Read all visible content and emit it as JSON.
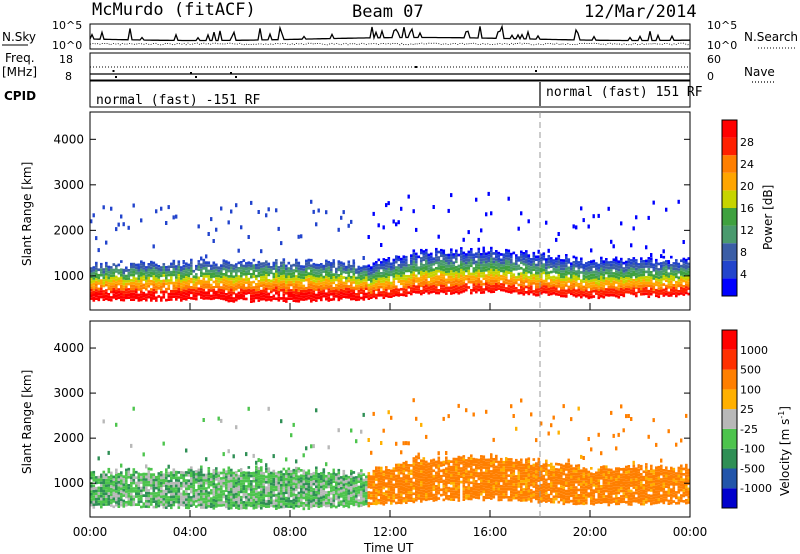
{
  "header": {
    "station": "McMurdo (fitACF)",
    "beam": "Beam 07",
    "date": "12/Mar/2014"
  },
  "top_panels": {
    "nsky_label": "N.Sky",
    "nsearch_label": "N.Search",
    "nsky_ticks": [
      "10^5",
      "10^0"
    ],
    "nsearch_ticks": [
      "10^5",
      "10^0"
    ],
    "freq_label_1": "Freq.",
    "freq_label_2": "[MHz]",
    "freq_ticks": [
      "18",
      "8"
    ],
    "nave_label": "Nave",
    "nave_ticks": [
      "60",
      "0"
    ],
    "cpid_label": "CPID",
    "cpid_segments": [
      {
        "text": "normal (fast) -151 RF",
        "start_hour": 0
      },
      {
        "text": "normal (fast) 151 RF",
        "start_hour": 18
      }
    ]
  },
  "colors": {
    "power_scale": [
      "#0000ff",
      "#2244cc",
      "#3b5ea6",
      "#4a9a6e",
      "#3fa13f",
      "#c7d400",
      "#ffa500",
      "#ff7f00",
      "#ff2000",
      "#ff0000"
    ],
    "velocity_scale": [
      "#0000cc",
      "#2255aa",
      "#2f8f55",
      "#4dc44d",
      "#b8b8b8",
      "#ffb000",
      "#ff7f00",
      "#ff3000",
      "#ff0000"
    ]
  },
  "chart_data": [
    {
      "type": "heatmap",
      "panel": "power",
      "ylabel": "Slant Range [km]",
      "xlabel": "",
      "yticks": [
        "1000",
        "2000",
        "3000",
        "4000"
      ],
      "ylim": [
        250,
        4600
      ],
      "xlim_hours": [
        0,
        24
      ],
      "colorbar_label": "Power [dB]",
      "colorbar_ticks": [
        "28",
        "24",
        "20",
        "16",
        "12",
        "8",
        "4"
      ],
      "colorbar_range": [
        0,
        30
      ],
      "echo_band_lower_km": [
        {
          "h": 0,
          "km": 470
        },
        {
          "h": 4,
          "km": 460
        },
        {
          "h": 8,
          "km": 430
        },
        {
          "h": 11,
          "km": 480
        },
        {
          "h": 13,
          "km": 600
        },
        {
          "h": 16,
          "km": 640
        },
        {
          "h": 20,
          "km": 520
        },
        {
          "h": 24,
          "km": 560
        }
      ],
      "echo_band_upper_km": [
        {
          "h": 0,
          "km": 1200
        },
        {
          "h": 4,
          "km": 1250
        },
        {
          "h": 8,
          "km": 1300
        },
        {
          "h": 11,
          "km": 1200
        },
        {
          "h": 13,
          "km": 1500
        },
        {
          "h": 16,
          "km": 1550
        },
        {
          "h": 20,
          "km": 1300
        },
        {
          "h": 24,
          "km": 1350
        }
      ]
    },
    {
      "type": "heatmap",
      "panel": "velocity",
      "ylabel": "Slant Range [km]",
      "xlabel": "Time UT",
      "yticks": [
        "1000",
        "2000",
        "3000",
        "4000"
      ],
      "ylim": [
        250,
        4600
      ],
      "xticks": [
        "00:00",
        "04:00",
        "08:00",
        "12:00",
        "16:00",
        "20:00",
        "00:00"
      ],
      "xlim_hours": [
        0,
        24
      ],
      "colorbar_label": "Velocity [m s",
      "colorbar_label_sup": "-1",
      "colorbar_ticks": [
        "1000",
        "500",
        "100",
        "25",
        "-25",
        "-100",
        "-500",
        "-1000"
      ]
    }
  ]
}
